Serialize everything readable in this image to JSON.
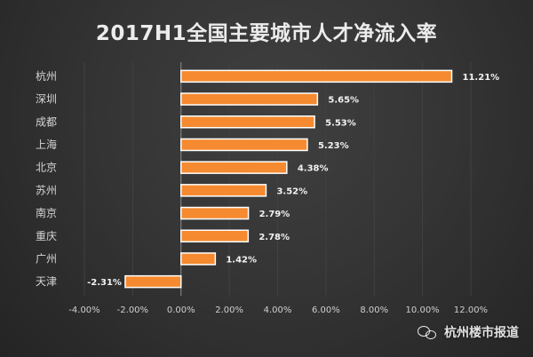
{
  "title": "2017H1全国主要城市人才净流入率",
  "watermark": {
    "text": "杭州楼市报道",
    "icon_name": "wechat-icon"
  },
  "chart_data": {
    "type": "bar",
    "orientation": "horizontal",
    "title": "2017H1全国主要城市人才净流入率",
    "categories": [
      "杭州",
      "深圳",
      "成都",
      "上海",
      "北京",
      "苏州",
      "南京",
      "重庆",
      "广州",
      "天津"
    ],
    "values": [
      11.21,
      5.65,
      5.53,
      5.23,
      4.38,
      3.52,
      2.79,
      2.78,
      1.42,
      -2.31
    ],
    "value_labels": [
      "11.21%",
      "5.65%",
      "5.53%",
      "5.23%",
      "4.38%",
      "3.52%",
      "2.79%",
      "2.78%",
      "1.42%",
      "-2.31%"
    ],
    "x_ticks": [
      -4,
      -2,
      0,
      2,
      4,
      6,
      8,
      10,
      12
    ],
    "x_tick_labels": [
      "-4.00%",
      "-2.00%",
      "0.00%",
      "2.00%",
      "4.00%",
      "6.00%",
      "8.00%",
      "10.00%",
      "12.00%"
    ],
    "xlim": [
      -4,
      12
    ],
    "grid": true,
    "legend": "none",
    "colors": {
      "background": "#303030",
      "bar": "#f58a30",
      "bar_border": "#ffffff",
      "text": "#d5d5d5",
      "title": "#ececec"
    }
  }
}
